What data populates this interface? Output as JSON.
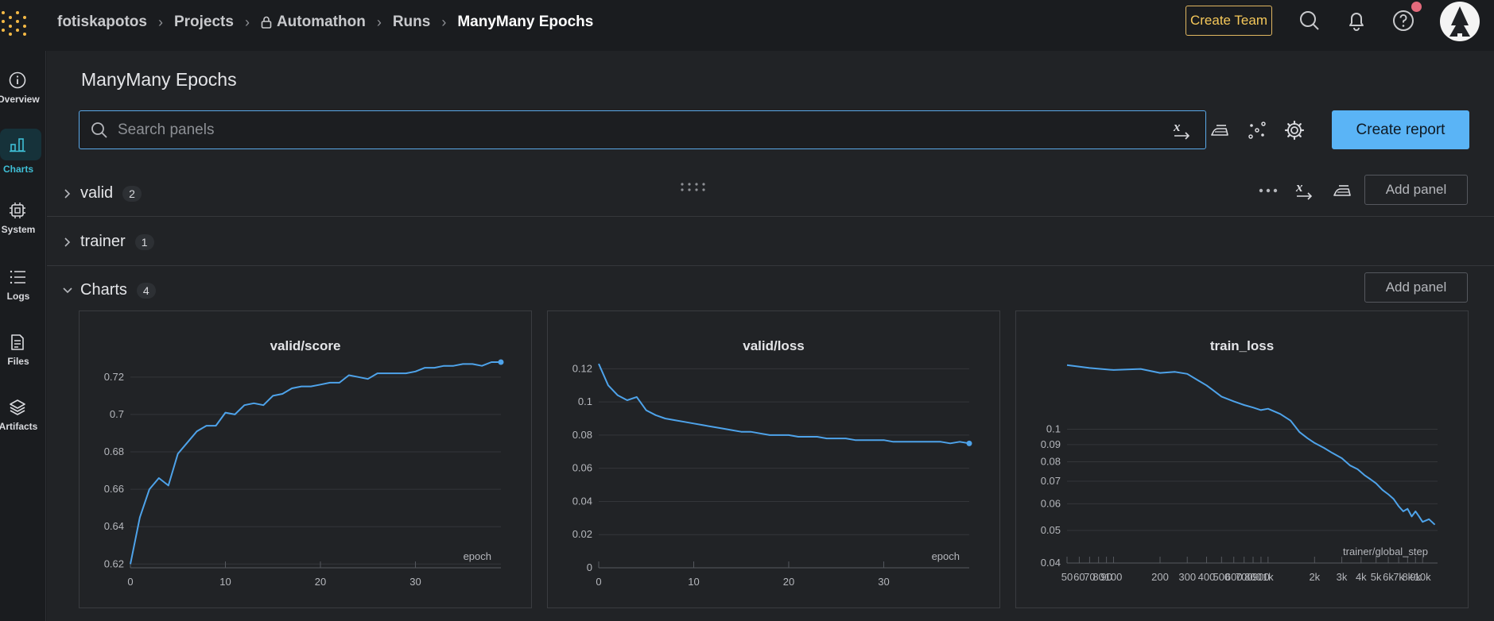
{
  "breadcrumb": {
    "user": "fotiskapotos",
    "projects": "Projects",
    "project": "Automathon",
    "runs": "Runs",
    "run": "ManyMany Epochs"
  },
  "topbar": {
    "create_team": "Create Team"
  },
  "sidebar": {
    "items": [
      {
        "label": "Overview",
        "icon": "info-icon"
      },
      {
        "label": "Charts",
        "icon": "bar-chart-icon"
      },
      {
        "label": "System",
        "icon": "cpu-icon"
      },
      {
        "label": "Logs",
        "icon": "list-icon"
      },
      {
        "label": "Files",
        "icon": "file-icon"
      },
      {
        "label": "Artifacts",
        "icon": "layers-icon"
      }
    ]
  },
  "main": {
    "title": "ManyMany Epochs",
    "search_placeholder": "Search panels",
    "create_report": "Create report",
    "sections": [
      {
        "name": "valid",
        "count": "2",
        "add_panel": "Add panel"
      },
      {
        "name": "trainer",
        "count": "1"
      },
      {
        "name": "Charts",
        "count": "4",
        "add_panel": "Add panel"
      }
    ]
  },
  "colors": {
    "accent": "#5ab4f6",
    "line": "#4ea3ea",
    "warning": "#f5c85a"
  },
  "chart_data": [
    {
      "type": "line",
      "title": "valid/score",
      "xlabel": "epoch",
      "ylabel": "",
      "xlim": [
        0,
        39
      ],
      "ylim": [
        0.618,
        0.728
      ],
      "xticks": [
        0,
        10,
        20,
        30
      ],
      "yticks": [
        0.62,
        0.64,
        0.66,
        0.68,
        0.7,
        0.72
      ],
      "ytick_labels": [
        "0.62",
        "0.64",
        "0.66",
        "0.68",
        "0.7",
        "0.72"
      ],
      "x": [
        0,
        1,
        2,
        3,
        4,
        5,
        6,
        7,
        8,
        9,
        10,
        11,
        12,
        13,
        14,
        15,
        16,
        17,
        18,
        19,
        20,
        21,
        22,
        23,
        24,
        25,
        26,
        27,
        28,
        29,
        30,
        31,
        32,
        33,
        34,
        35,
        36,
        37,
        38,
        39
      ],
      "values": [
        0.62,
        0.645,
        0.66,
        0.666,
        0.662,
        0.679,
        0.685,
        0.691,
        0.694,
        0.694,
        0.701,
        0.7,
        0.705,
        0.706,
        0.705,
        0.71,
        0.711,
        0.714,
        0.715,
        0.715,
        0.716,
        0.717,
        0.717,
        0.721,
        0.72,
        0.719,
        0.722,
        0.722,
        0.722,
        0.722,
        0.723,
        0.725,
        0.725,
        0.726,
        0.726,
        0.727,
        0.727,
        0.726,
        0.728,
        0.728
      ]
    },
    {
      "type": "line",
      "title": "valid/loss",
      "xlabel": "epoch",
      "ylabel": "",
      "xlim": [
        0,
        39
      ],
      "ylim": [
        0,
        0.124
      ],
      "xticks": [
        0,
        10,
        20,
        30
      ],
      "yticks": [
        0,
        0.02,
        0.04,
        0.06,
        0.08,
        0.1,
        0.12
      ],
      "ytick_labels": [
        "0",
        "0.02",
        "0.04",
        "0.06",
        "0.08",
        "0.1",
        "0.12"
      ],
      "x": [
        0,
        1,
        2,
        3,
        4,
        5,
        6,
        7,
        8,
        9,
        10,
        11,
        12,
        13,
        14,
        15,
        16,
        17,
        18,
        19,
        20,
        21,
        22,
        23,
        24,
        25,
        26,
        27,
        28,
        29,
        30,
        31,
        32,
        33,
        34,
        35,
        36,
        37,
        38,
        39
      ],
      "values": [
        0.123,
        0.11,
        0.104,
        0.101,
        0.103,
        0.095,
        0.092,
        0.09,
        0.089,
        0.088,
        0.087,
        0.086,
        0.085,
        0.084,
        0.083,
        0.082,
        0.082,
        0.081,
        0.08,
        0.08,
        0.08,
        0.079,
        0.079,
        0.079,
        0.078,
        0.078,
        0.078,
        0.077,
        0.077,
        0.077,
        0.077,
        0.076,
        0.076,
        0.076,
        0.076,
        0.076,
        0.076,
        0.075,
        0.076,
        0.075
      ]
    },
    {
      "type": "line",
      "title": "train_loss",
      "xlabel": "trainer/global_step",
      "ylabel": "",
      "log_x": true,
      "log_y": true,
      "xlim": [
        50,
        12500
      ],
      "ylim": [
        0.04,
        0.16
      ],
      "xticks": [
        50,
        60,
        70,
        80,
        90,
        100,
        200,
        300,
        400,
        500,
        600,
        700,
        800,
        900,
        1000,
        2000,
        3000,
        4000,
        5000,
        6000,
        7000,
        8000,
        9000,
        10000
      ],
      "xtick_labels": [
        "50",
        "60",
        "70",
        "80",
        "90",
        "100",
        "200",
        "300",
        "400",
        "500",
        "600",
        "700",
        "800",
        "900",
        "1k",
        "2k",
        "3k",
        "4k",
        "5k",
        "6k",
        "7k",
        "8k",
        "9k",
        "10k"
      ],
      "yticks": [
        0.04,
        0.05,
        0.06,
        0.07,
        0.08,
        0.09,
        0.1
      ],
      "ytick_labels": [
        "0.04",
        "0.05",
        "0.06",
        "0.07",
        "0.08",
        "0.09",
        "0.1"
      ],
      "x": [
        50,
        70,
        100,
        150,
        200,
        250,
        300,
        350,
        400,
        500,
        600,
        700,
        800,
        900,
        1000,
        1200,
        1400,
        1600,
        1800,
        2000,
        2300,
        2600,
        3000,
        3400,
        3800,
        4200,
        4600,
        5000,
        5500,
        6000,
        6500,
        7000,
        7500,
        8000,
        8500,
        9000,
        9500,
        10000,
        11000,
        12000
      ],
      "values": [
        0.155,
        0.152,
        0.15,
        0.151,
        0.147,
        0.148,
        0.146,
        0.14,
        0.135,
        0.125,
        0.121,
        0.118,
        0.116,
        0.114,
        0.115,
        0.111,
        0.106,
        0.098,
        0.094,
        0.091,
        0.088,
        0.085,
        0.082,
        0.078,
        0.076,
        0.073,
        0.071,
        0.069,
        0.066,
        0.064,
        0.062,
        0.059,
        0.057,
        0.058,
        0.055,
        0.057,
        0.055,
        0.053,
        0.054,
        0.052
      ]
    }
  ]
}
